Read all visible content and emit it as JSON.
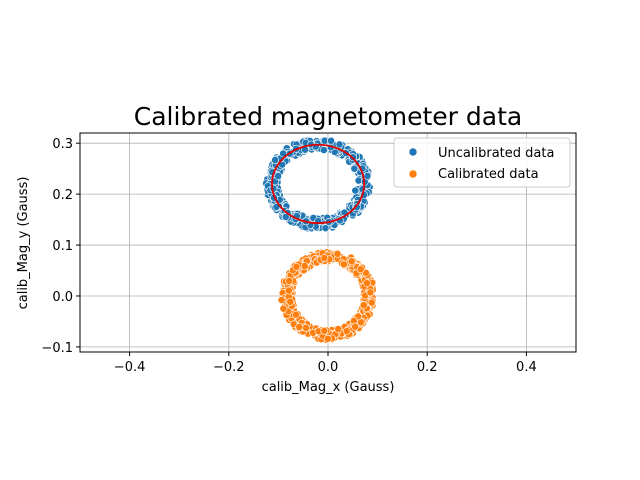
{
  "chart_data": {
    "type": "scatter",
    "title": "Calibrated magnetometer data",
    "xlabel": "calib_Mag_x (Gauss)",
    "ylabel": "calib_Mag_y (Gauss)",
    "xlim": [
      -0.5,
      0.5
    ],
    "ylim": [
      -0.11,
      0.32
    ],
    "x_ticks": [
      -0.4,
      -0.2,
      0.0,
      0.2,
      0.4
    ],
    "x_tick_labels": [
      "−0.4",
      "−0.2",
      "0.0",
      "0.2",
      "0.4"
    ],
    "y_ticks": [
      -0.1,
      0.0,
      0.1,
      0.2,
      0.3
    ],
    "y_tick_labels": [
      "−0.1",
      "0.0",
      "0.1",
      "0.2",
      "0.3"
    ],
    "grid": true,
    "legend_position": "top-right",
    "series": [
      {
        "name": "Uncalibrated data",
        "color": "#1f77b4",
        "shape": "ring",
        "center": [
          -0.02,
          0.22
        ],
        "radius_x": 0.093,
        "radius_y": 0.078,
        "band_width": 0.012,
        "point_count": 520,
        "outliers": [
          [
            0.055,
            0.207
          ]
        ]
      },
      {
        "name": "Calibrated data",
        "color": "#ff7f0e",
        "shape": "ring",
        "center": [
          0.0,
          0.0
        ],
        "radius_x": 0.083,
        "radius_y": 0.077,
        "band_width": 0.011,
        "point_count": 520,
        "outliers": [
          [
            0.072,
            -0.018
          ]
        ]
      }
    ],
    "fit_ellipse": {
      "color": "#e00000",
      "center": [
        -0.02,
        0.22
      ],
      "radius_x": 0.093,
      "radius_y": 0.077
    }
  }
}
